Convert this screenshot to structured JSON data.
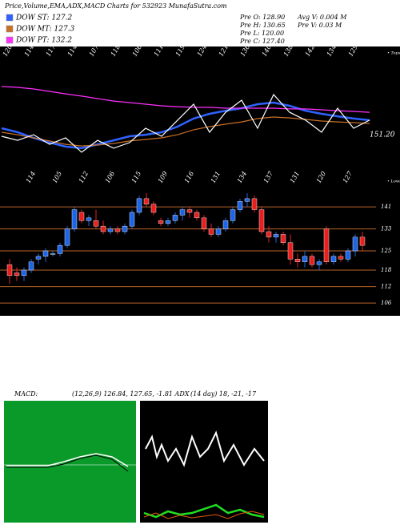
{
  "header": {
    "title": "Price,Volume,EMA,ADX,MACD Charts for 532923 MunafaSutra.com",
    "info": [
      "Pre O: 128.90",
      "Pre H: 130.65",
      "Pre L: 120.00",
      "Pre C: 127.40",
      "Avg V: 0.004 M",
      "Pre V: 0.03 M"
    ]
  },
  "chart_data": [
    {
      "type": "line",
      "ylim": [
        110,
        160
      ],
      "top_labels": [
        "120",
        "114",
        "117",
        "114",
        "107",
        "118",
        "106",
        "111",
        "119",
        "124",
        "121",
        "136",
        "140",
        "138",
        "142",
        "134",
        "129"
      ],
      "tops_label": "• Tops",
      "annotation": "151.20",
      "series": [
        {
          "name": "DOW ST: 127.2",
          "color": "#2f62ff",
          "values": [
            124.3,
            122.5,
            120,
            117.9,
            116.1,
            115.4,
            117.1,
            118.9,
            120.7,
            121.4,
            122.5,
            125,
            128.6,
            130.7,
            132.1,
            133.2,
            135,
            135.7,
            134.3,
            132.1,
            130.7,
            129.6,
            128.6,
            127.9
          ]
        },
        {
          "name": "DOW MT: 127.3",
          "color": "#c87028",
          "values": [
            122.5,
            121.4,
            120,
            118.6,
            117.1,
            116.4,
            116.8,
            117.5,
            118.6,
            119.3,
            120,
            121.4,
            123.6,
            125,
            126.1,
            127.1,
            128.6,
            129.3,
            128.9,
            128.2,
            127.5,
            127.1,
            126.8,
            126.4
          ]
        },
        {
          "name": "DOW PT: 132.2",
          "color": "#ff30ff",
          "values": [
            142.9,
            142.5,
            141.8,
            140.7,
            139.6,
            138.6,
            137.5,
            136.4,
            135.7,
            135,
            134.3,
            133.9,
            133.6,
            133.6,
            133.2,
            133.2,
            133.2,
            133.2,
            132.9,
            132.9,
            132.5,
            132.1,
            131.8,
            131.4
          ]
        },
        {
          "color": "#ffffff",
          "values": [
            120.7,
            118.9,
            121.4,
            117.1,
            120,
            113.6,
            118.9,
            115.4,
            117.9,
            124.3,
            120.7,
            127.9,
            135,
            122.5,
            131.4,
            136.8,
            124.3,
            139.3,
            131.4,
            127.9,
            122.5,
            133.2,
            124.3,
            127.9
          ]
        }
      ]
    },
    {
      "type": "candlestick",
      "ylim": [
        104,
        153
      ],
      "yticks": [
        141,
        133,
        125,
        118,
        112,
        106
      ],
      "grid": true,
      "grid_color": "#b8642a",
      "up_color": "#1e64e6",
      "down_color": "#e62020",
      "low_labels": [
        "114",
        "105",
        "112",
        "106",
        "115",
        "109",
        "116",
        "131",
        "134",
        "137",
        "131",
        "120",
        "127"
      ],
      "lows_label": "• Lows",
      "candles": [
        [
          120,
          122,
          113,
          116
        ],
        [
          117,
          119,
          114,
          116
        ],
        [
          116,
          119,
          114,
          118
        ],
        [
          118,
          122,
          117,
          121
        ],
        [
          122,
          124,
          120,
          123
        ],
        [
          123,
          126,
          121,
          125
        ],
        [
          124,
          125,
          123,
          124
        ],
        [
          124,
          128,
          123,
          127
        ],
        [
          127,
          134,
          126,
          133
        ],
        [
          133,
          141,
          132,
          140
        ],
        [
          139,
          140,
          135,
          136
        ],
        [
          136,
          138,
          134,
          137
        ],
        [
          136,
          140,
          133,
          134
        ],
        [
          134,
          136,
          131,
          132
        ],
        [
          132,
          134,
          131,
          133
        ],
        [
          133,
          134,
          131,
          132
        ],
        [
          132,
          135,
          131,
          134
        ],
        [
          134,
          140,
          133,
          139
        ],
        [
          139,
          145,
          138,
          144
        ],
        [
          144,
          146,
          141,
          142
        ],
        [
          142,
          143,
          138,
          139
        ],
        [
          136,
          137,
          134,
          135
        ],
        [
          135,
          137,
          134,
          136
        ],
        [
          136,
          139,
          135,
          138
        ],
        [
          138,
          141,
          136,
          140
        ],
        [
          140,
          141,
          137,
          139
        ],
        [
          139,
          140,
          136,
          137
        ],
        [
          137,
          138,
          132,
          133
        ],
        [
          133,
          135,
          130,
          131
        ],
        [
          131,
          134,
          130,
          133
        ],
        [
          133,
          137,
          132,
          136
        ],
        [
          136,
          141,
          135,
          140
        ],
        [
          140,
          144,
          139,
          143
        ],
        [
          143,
          146,
          141,
          144
        ],
        [
          144,
          145,
          139,
          140
        ],
        [
          140,
          141,
          131,
          132
        ],
        [
          132,
          134,
          128,
          130
        ],
        [
          130,
          132,
          128,
          131
        ],
        [
          131,
          132,
          127,
          128
        ],
        [
          128,
          131,
          120,
          122
        ],
        [
          122,
          124,
          119,
          121
        ],
        [
          121,
          125,
          119,
          123
        ],
        [
          123,
          124,
          119,
          120
        ],
        [
          120,
          122,
          118,
          121
        ],
        [
          133,
          134,
          120,
          121
        ],
        [
          121,
          124,
          120,
          123
        ],
        [
          123,
          124,
          121,
          122
        ],
        [
          122,
          126,
          121,
          125
        ],
        [
          125,
          131,
          123,
          130
        ],
        [
          130,
          132,
          125,
          127
        ]
      ]
    }
  ],
  "indicators": {
    "macd_label": "MACD:",
    "macd_values": "(12,26,9) 126.84, 127.65, -1.81 ADX",
    "adx_values": "(14 day) 18, -21, -17"
  }
}
